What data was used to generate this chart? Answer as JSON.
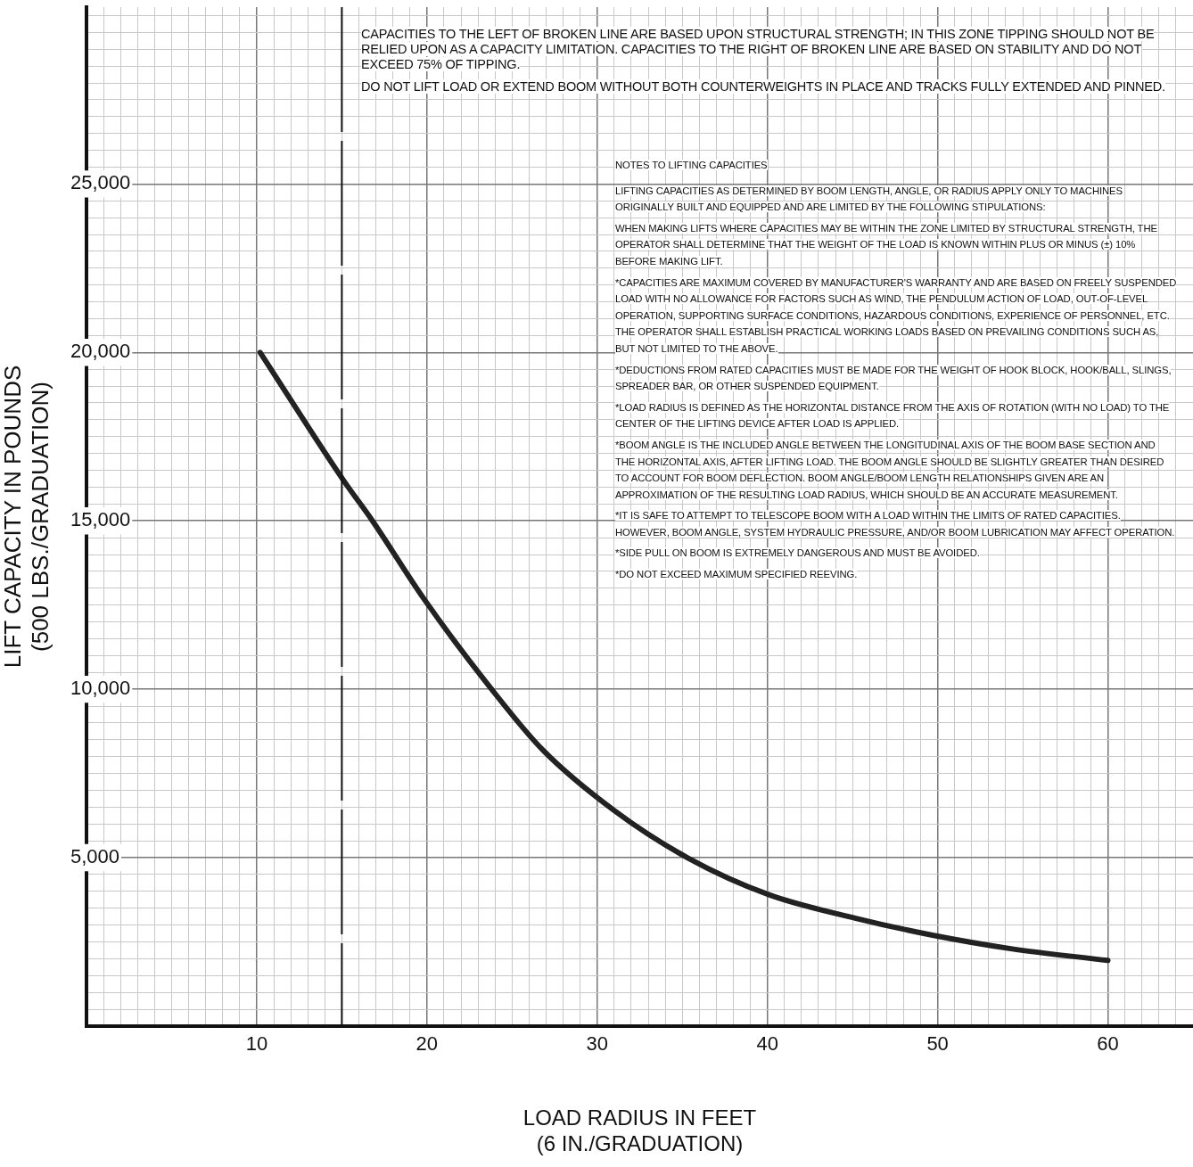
{
  "chart_data": {
    "type": "line",
    "xlabel": "LOAD RADIUS IN FEET\n(6 IN./GRADUATION)",
    "ylabel": "LIFT CAPACITY IN POUNDS\n(500 LBS./GRADUATION)",
    "x": [
      10.2,
      15.1,
      16.8,
      19.8,
      23.8,
      26.8,
      31,
      35.3,
      40.1,
      45.2,
      49.7,
      54.3,
      60
    ],
    "series": [
      {
        "color": "#222222",
        "values": [
          20000,
          16200,
          15000,
          12700,
          10000,
          8200,
          6400,
          5000,
          3900,
          3200,
          2700,
          2300,
          1950
        ]
      }
    ],
    "xlim": [
      0,
      65
    ],
    "ylim": [
      0,
      30250
    ],
    "xticks": [
      {
        "value": 1,
        "label": null
      },
      {
        "value": 2,
        "label": null
      },
      {
        "value": 3,
        "label": null
      },
      {
        "value": 4,
        "label": null
      },
      {
        "value": 5,
        "label": null
      },
      {
        "value": 6,
        "label": null
      },
      {
        "value": 7,
        "label": null
      },
      {
        "value": 8,
        "label": null
      },
      {
        "value": 9,
        "label": null
      },
      10,
      {
        "value": 11,
        "label": null
      },
      {
        "value": 12,
        "label": null
      },
      {
        "value": 13,
        "label": null
      },
      {
        "value": 14,
        "label": null
      },
      {
        "value": 15,
        "label": null
      },
      {
        "value": 16,
        "label": null
      },
      {
        "value": 17,
        "label": null
      },
      {
        "value": 18,
        "label": null
      },
      {
        "value": 19,
        "label": null
      },
      20,
      {
        "value": 21,
        "label": null
      },
      {
        "value": 22,
        "label": null
      },
      {
        "value": 23,
        "label": null
      },
      {
        "value": 24,
        "label": null
      },
      {
        "value": 25,
        "label": null
      },
      {
        "value": 26,
        "label": null
      },
      {
        "value": 27,
        "label": null
      },
      {
        "value": 28,
        "label": null
      },
      {
        "value": 29,
        "label": null
      },
      30,
      {
        "value": 31,
        "label": null
      },
      {
        "value": 32,
        "label": null
      },
      {
        "value": 33,
        "label": null
      },
      {
        "value": 34,
        "label": null
      },
      {
        "value": 35,
        "label": null
      },
      {
        "value": 36,
        "label": null
      },
      {
        "value": 37,
        "label": null
      },
      {
        "value": 38,
        "label": null
      },
      {
        "value": 39,
        "label": null
      },
      40,
      {
        "value": 41,
        "label": null
      },
      {
        "value": 42,
        "label": null
      },
      {
        "value": 43,
        "label": null
      },
      {
        "value": 44,
        "label": null
      },
      {
        "value": 45,
        "label": null
      },
      {
        "value": 46,
        "label": null
      },
      {
        "value": 47,
        "label": null
      },
      {
        "value": 48,
        "label": null
      },
      {
        "value": 49,
        "label": null
      },
      50,
      {
        "value": 51,
        "label": null
      },
      {
        "value": 52,
        "label": null
      },
      {
        "value": 53,
        "label": null
      },
      {
        "value": 54,
        "label": null
      },
      {
        "value": 55,
        "label": null
      },
      {
        "value": 56,
        "label": null
      },
      {
        "value": 57,
        "label": null
      },
      {
        "value": 58,
        "label": null
      },
      {
        "value": 59,
        "label": null
      },
      60,
      {
        "value": 61,
        "label": null
      },
      {
        "value": 62,
        "label": null
      },
      {
        "value": 63,
        "label": null
      },
      {
        "value": 64,
        "label": null
      }
    ],
    "yticks": [
      {
        "value": 500,
        "label": null
      },
      {
        "value": 1000,
        "label": null
      },
      {
        "value": 1500,
        "label": null
      },
      {
        "value": 2000,
        "label": null
      },
      {
        "value": 2500,
        "label": null
      },
      {
        "value": 3000,
        "label": null
      },
      {
        "value": 3500,
        "label": null
      },
      {
        "value": 4000,
        "label": null
      },
      {
        "value": 4500,
        "label": null
      },
      {
        "value": 5000,
        "label": "5,000"
      },
      {
        "value": 5500,
        "label": null
      },
      {
        "value": 6000,
        "label": null
      },
      {
        "value": 6500,
        "label": null
      },
      {
        "value": 7000,
        "label": null
      },
      {
        "value": 7500,
        "label": null
      },
      {
        "value": 8000,
        "label": null
      },
      {
        "value": 8500,
        "label": null
      },
      {
        "value": 9000,
        "label": null
      },
      {
        "value": 9500,
        "label": null
      },
      {
        "value": 10000,
        "label": "10,000"
      },
      {
        "value": 10500,
        "label": null
      },
      {
        "value": 11000,
        "label": null
      },
      {
        "value": 11500,
        "label": null
      },
      {
        "value": 12000,
        "label": null
      },
      {
        "value": 12500,
        "label": null
      },
      {
        "value": 13000,
        "label": null
      },
      {
        "value": 13500,
        "label": null
      },
      {
        "value": 14000,
        "label": null
      },
      {
        "value": 14500,
        "label": null
      },
      {
        "value": 15000,
        "label": "15,000"
      },
      {
        "value": 15500,
        "label": null
      },
      {
        "value": 16000,
        "label": null
      },
      {
        "value": 16500,
        "label": null
      },
      {
        "value": 17000,
        "label": null
      },
      {
        "value": 17500,
        "label": null
      },
      {
        "value": 18000,
        "label": null
      },
      {
        "value": 18500,
        "label": null
      },
      {
        "value": 19000,
        "label": null
      },
      {
        "value": 19500,
        "label": null
      },
      {
        "value": 20000,
        "label": "20,000"
      },
      {
        "value": 20500,
        "label": null
      },
      {
        "value": 21000,
        "label": null
      },
      {
        "value": 21500,
        "label": null
      },
      {
        "value": 22000,
        "label": null
      },
      {
        "value": 22500,
        "label": null
      },
      {
        "value": 23000,
        "label": null
      },
      {
        "value": 23500,
        "label": null
      },
      {
        "value": 24000,
        "label": null
      },
      {
        "value": 24500,
        "label": null
      },
      {
        "value": 25000,
        "label": "25,000"
      },
      {
        "value": 25500,
        "label": null
      },
      {
        "value": 26000,
        "label": null
      },
      {
        "value": 26500,
        "label": null
      },
      {
        "value": 27000,
        "label": null
      },
      {
        "value": 27500,
        "label": null
      },
      {
        "value": 28000,
        "label": null
      },
      {
        "value": 28500,
        "label": null
      },
      {
        "value": 29000,
        "label": null
      },
      {
        "value": 29500,
        "label": null
      },
      {
        "value": 30000,
        "label": null
      }
    ],
    "grid": true,
    "marker": "none",
    "line_style": "solid",
    "ref_lines": [
      {
        "axis": "x",
        "value": 15,
        "color": "#111111",
        "line_style": "dashed"
      }
    ],
    "annotations": [
      "CAPACITIES TO THE LEFT OF BROKEN LINE ARE BASED UPON STRUCTURAL STRENGTH; IN THIS ZONE TIPPING SHOULD NOT BE RELIED UPON AS A CAPACITY LIMITATION. CAPACITIES TO THE RIGHT OF BROKEN LINE ARE BASED ON STABILITY AND DO NOT EXCEED 75% OF TIPPING.",
      "DO NOT LIFT LOAD OR EXTEND BOOM WITHOUT BOTH COUNTERWEIGHTS IN PLACE AND TRACKS FULLY EXTENDED AND PINNED.",
      "NOTES TO LIFTING CAPACITIES",
      "LIFTING CAPACITIES AS DETERMINED BY BOOM LENGTH, ANGLE, OR RADIUS APPLY ONLY TO MACHINES ORIGINALLY BUILT AND EQUIPPED AND ARE LIMITED BY THE FOLLOWING STIPULATIONS:",
      "WHEN MAKING LIFTS WHERE CAPACITIES MAY BE WITHIN THE ZONE LIMITED BY STRUCTURAL STRENGTH, THE OPERATOR SHALL DETERMINE THAT THE WEIGHT OF THE LOAD IS KNOWN WITHIN PLUS OR MINUS (±) 10% BEFORE MAKING LIFT.",
      "*CAPACITIES ARE MAXIMUM COVERED BY MANUFACTURER'S WARRANTY AND ARE BASED ON FREELY SUSPENDED LOAD WITH NO ALLOWANCE FOR FACTORS SUCH AS WIND, THE PENDULUM ACTION OF LOAD, OUT-OF-LEVEL OPERATION, SUPPORTING SURFACE CONDITIONS, HAZARDOUS CONDITIONS, EXPERIENCE OF PERSONNEL, ETC. THE OPERATOR SHALL ESTABLISH PRACTICAL WORKING LOADS BASED ON PREVAILING CONDITIONS SUCH AS, BUT NOT LIMITED TO THE ABOVE.",
      "*DEDUCTIONS FROM RATED CAPACITIES MUST BE MADE FOR THE WEIGHT OF HOOK BLOCK, HOOK/BALL, SLINGS, SPREADER BAR, OR OTHER SUSPENDED EQUIPMENT.",
      "*LOAD RADIUS IS DEFINED AS THE HORIZONTAL DISTANCE FROM THE AXIS OF ROTATION (WITH NO LOAD) TO THE CENTER OF THE LIFTING DEVICE AFTER LOAD IS APPLIED.",
      "*BOOM ANGLE IS THE INCLUDED ANGLE BETWEEN THE LONGITUDINAL AXIS OF THE BOOM BASE SECTION AND THE HORIZONTAL AXIS, AFTER LIFTING LOAD. THE BOOM ANGLE SHOULD BE SLIGHTLY GREATER THAN DESIRED TO ACCOUNT FOR BOOM DEFLECTION. BOOM ANGLE/BOOM LENGTH RELATIONSHIPS GIVEN ARE AN APPROXIMATION OF THE RESULTING LOAD RADIUS, WHICH SHOULD BE AN ACCURATE MEASUREMENT.",
      "*IT IS SAFE TO ATTEMPT TO TELESCOPE BOOM WITH A LOAD WITHIN THE LIMITS OF RATED CAPACITIES. HOWEVER, BOOM ANGLE, SYSTEM HYDRAULIC PRESSURE, AND/OR BOOM LUBRICATION MAY AFFECT OPERATION.",
      "*SIDE PULL ON BOOM IS EXTREMELY DANGEROUS AND MUST BE AVOIDED.",
      "*DO NOT EXCEED MAXIMUM SPECIFIED REEVING."
    ]
  }
}
